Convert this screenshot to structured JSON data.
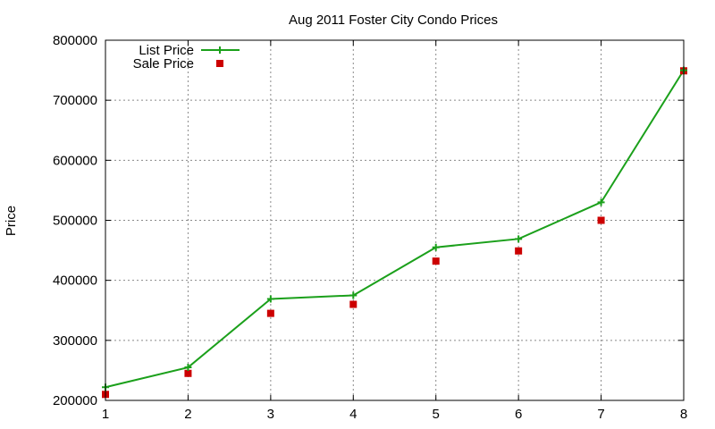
{
  "chart_data": {
    "type": "line",
    "title": "Aug 2011 Foster City Condo Prices",
    "xlabel": "",
    "ylabel": "Price",
    "x": [
      1,
      2,
      3,
      4,
      5,
      6,
      7,
      8
    ],
    "xlim": [
      1,
      8
    ],
    "ylim": [
      200000,
      800000
    ],
    "xticks": [
      1,
      2,
      3,
      4,
      5,
      6,
      7,
      8
    ],
    "yticks": [
      200000,
      300000,
      400000,
      500000,
      600000,
      700000,
      800000
    ],
    "grid": true,
    "legend_position": "top-left",
    "series": [
      {
        "name": "List Price",
        "style": "line-with-plus-markers",
        "color": "#1ba01b",
        "values": [
          222000,
          255000,
          369000,
          375000,
          455000,
          469000,
          530000,
          750000
        ]
      },
      {
        "name": "Sale Price",
        "style": "square-markers",
        "color": "#cc0000",
        "values": [
          210000,
          245000,
          345000,
          360000,
          432000,
          449000,
          500000,
          749000
        ]
      }
    ]
  }
}
